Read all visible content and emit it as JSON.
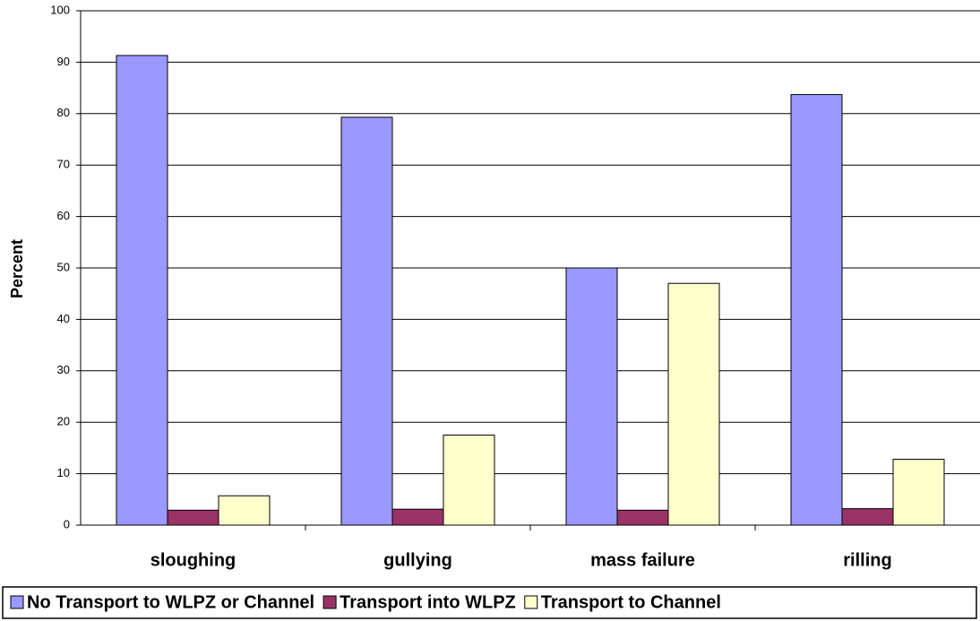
{
  "chart_data": {
    "type": "bar",
    "y_label": "Percent",
    "categories": [
      "sloughing",
      "gullying",
      "mass failure",
      "rilling"
    ],
    "series": [
      {
        "name": "No Transport to WLPZ or Channel",
        "color": "#9999ff",
        "values": [
          91.3,
          79.3,
          50,
          83.7
        ]
      },
      {
        "name": "Transport into WLPZ",
        "color": "#993366",
        "values": [
          2.9,
          3.1,
          2.9,
          3.2
        ]
      },
      {
        "name": "Transport to Channel",
        "color": "#ffffcc",
        "values": [
          5.7,
          17.5,
          47,
          12.8
        ]
      }
    ],
    "ylim": [
      0,
      100
    ],
    "yticks": [
      0,
      10,
      20,
      30,
      40,
      50,
      60,
      70,
      80,
      90,
      100
    ],
    "grid": true
  }
}
